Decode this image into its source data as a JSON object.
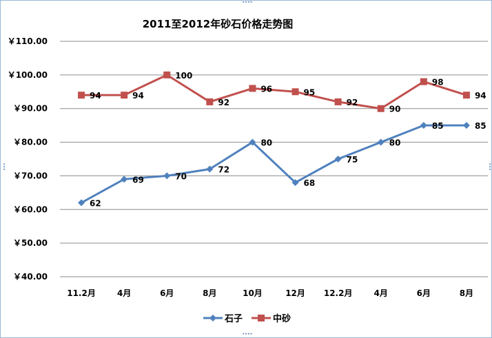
{
  "chart_data": {
    "type": "line",
    "title": "2011至2012年砂石价格走势图",
    "xlabel": "",
    "ylabel": "",
    "categories": [
      "11.2月",
      "4月",
      "6月",
      "8月",
      "10月",
      "12月",
      "12.2月",
      "4月",
      "6月",
      "8月"
    ],
    "y_ticks": [
      "￥40.00",
      "￥50.00",
      "￥60.00",
      "￥70.00",
      "￥80.00",
      "￥90.00",
      "￥100.00",
      "￥110.00"
    ],
    "ylim": [
      40,
      110
    ],
    "y_step": 10,
    "grid": true,
    "legend_position": "bottom",
    "series": [
      {
        "name": "石子",
        "color": "#4f81bd",
        "marker": "diamond",
        "values": [
          62,
          69,
          70,
          72,
          80,
          68,
          75,
          80,
          85,
          85
        ],
        "labels": [
          "62",
          "69",
          "70",
          "72",
          "80",
          "68",
          "75",
          "80",
          "85",
          "85"
        ]
      },
      {
        "name": "中砂",
        "color": "#c0504d",
        "marker": "square",
        "values": [
          94,
          94,
          100,
          92,
          96,
          95,
          92,
          90,
          98,
          94
        ],
        "labels": [
          "94",
          "94",
          "100",
          "92",
          "96",
          "95",
          "92",
          "90",
          "98",
          "94"
        ]
      }
    ]
  }
}
